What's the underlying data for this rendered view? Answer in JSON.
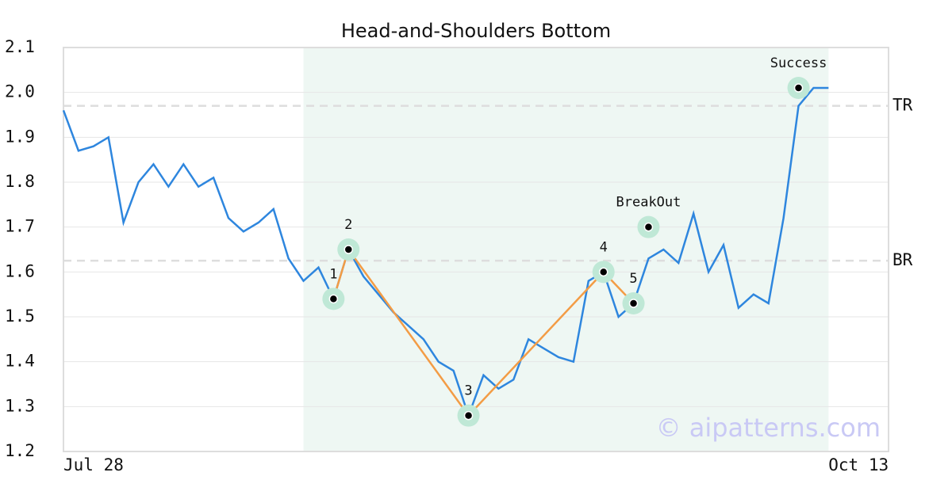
{
  "chart_data": {
    "type": "line",
    "title": "Head-and-Shoulders Bottom",
    "x": [
      0,
      1,
      2,
      3,
      4,
      5,
      6,
      7,
      8,
      9,
      10,
      11,
      12,
      13,
      14,
      15,
      16,
      17,
      18,
      19,
      20,
      21,
      22,
      23,
      24,
      25,
      26,
      27,
      28,
      29,
      30,
      31,
      32,
      33,
      34,
      35,
      36,
      37,
      38,
      39,
      40,
      41,
      42,
      43,
      44,
      45,
      46,
      47,
      48,
      49,
      50,
      51
    ],
    "xlim": [
      0,
      55
    ],
    "xticks": [
      {
        "value": 0,
        "label": "Jul 28"
      },
      {
        "value": 53,
        "label": "Oct 13"
      }
    ],
    "ylim": [
      1.2,
      2.1
    ],
    "yticks": [
      1.2,
      1.3,
      1.4,
      1.5,
      1.6,
      1.7,
      1.8,
      1.9,
      {
        "value": 2,
        "label": "2.0"
      },
      2.1
    ],
    "grid": true,
    "series": [
      {
        "color": "#2e86de",
        "values": [
          1.96,
          1.87,
          1.88,
          1.9,
          1.71,
          1.8,
          1.84,
          1.79,
          1.84,
          1.79,
          1.81,
          1.72,
          1.69,
          1.71,
          1.74,
          1.63,
          1.58,
          1.61,
          1.54,
          1.65,
          1.59,
          1.55,
          1.51,
          1.48,
          1.45,
          1.4,
          1.38,
          1.28,
          1.37,
          1.34,
          1.36,
          1.45,
          1.43,
          1.41,
          1.4,
          1.58,
          1.6,
          1.5,
          1.53,
          1.63,
          1.65,
          1.62,
          1.73,
          1.6,
          1.66,
          1.52,
          1.55,
          1.53,
          1.72,
          1.97,
          2.01,
          2.01
        ]
      }
    ],
    "shaded_x": [
      16,
      51
    ],
    "shade_color": "#eef7f3",
    "levels": [
      {
        "label": "TR",
        "value": 1.97
      },
      {
        "label": "BR",
        "value": 1.625
      }
    ],
    "pattern": {
      "color": "#f39c45",
      "points": [
        {
          "label": "1",
          "x": 18,
          "y": 1.54
        },
        {
          "label": "2",
          "x": 19,
          "y": 1.65
        },
        {
          "label": "3",
          "x": 27,
          "y": 1.28
        },
        {
          "label": "4",
          "x": 36,
          "y": 1.6
        },
        {
          "label": "5",
          "x": 38,
          "y": 1.53
        }
      ]
    },
    "events": [
      {
        "label": "BreakOut",
        "x": 39,
        "y": 1.7
      },
      {
        "label": "Success",
        "x": 49,
        "y": 2.01
      }
    ],
    "watermark": "© aipatterns.com"
  }
}
